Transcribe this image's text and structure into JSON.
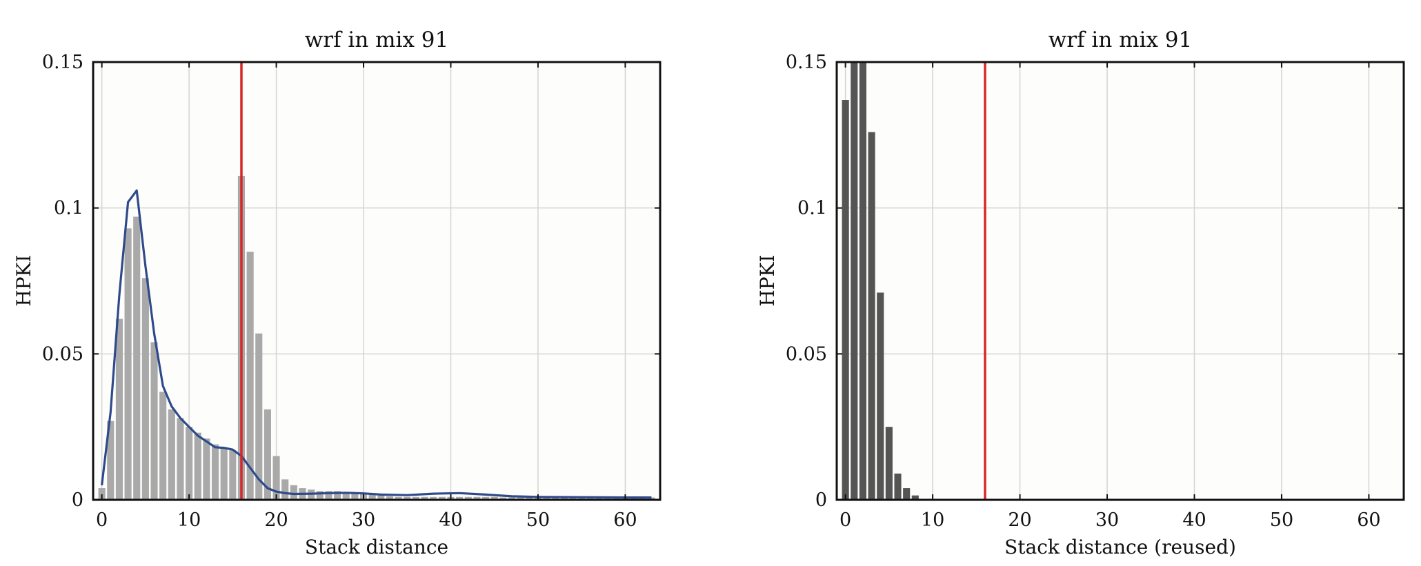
{
  "chart_data": [
    {
      "type": "bar",
      "title": "wrf in mix 91",
      "xlabel": "Stack distance",
      "ylabel": "HPKI",
      "xlim": [
        -1,
        64
      ],
      "ylim": [
        0,
        0.15
      ],
      "xticks": [
        "0",
        "10",
        "20",
        "30",
        "40",
        "50",
        "60"
      ],
      "yticks": [
        "0",
        "0.05",
        "0.1",
        "0.15"
      ],
      "grid": true,
      "bar_color": "#a9a9a9",
      "bars": {
        "x": [
          0,
          1,
          2,
          3,
          4,
          5,
          6,
          7,
          8,
          9,
          10,
          11,
          12,
          13,
          14,
          15,
          16,
          17,
          18,
          19,
          20,
          21,
          22,
          23,
          24,
          25,
          26,
          27,
          28,
          29,
          30,
          31,
          32,
          33,
          34,
          35,
          36,
          37,
          38,
          39,
          40,
          41,
          42,
          43,
          44,
          45,
          46,
          47,
          48,
          49,
          50,
          51,
          52,
          53,
          54,
          55,
          56,
          57,
          58,
          59,
          60,
          61,
          62,
          63
        ],
        "values": [
          0.004,
          0.027,
          0.062,
          0.093,
          0.097,
          0.076,
          0.054,
          0.037,
          0.031,
          0.028,
          0.025,
          0.023,
          0.021,
          0.019,
          0.018,
          0.017,
          0.111,
          0.085,
          0.057,
          0.031,
          0.015,
          0.007,
          0.005,
          0.004,
          0.0035,
          0.003,
          0.003,
          0.003,
          0.0025,
          0.0025,
          0.002,
          0.0018,
          0.0015,
          0.0012,
          0.001,
          0.001,
          0.001,
          0.001,
          0.001,
          0.001,
          0.001,
          0.001,
          0.001,
          0.001,
          0.001,
          0.001,
          0.0008,
          0.0008,
          0.0008,
          0.0008,
          0.0008,
          0.0008,
          0.0008,
          0.0008,
          0.0008,
          0.0008,
          0.0008,
          0.0008,
          0.0008,
          0.0008,
          0.0008,
          0.0008,
          0.0008,
          0.0008
        ]
      },
      "line": {
        "color": "#2e4a8b",
        "x": [
          0,
          1,
          2,
          3,
          4,
          5,
          6,
          7,
          8,
          9,
          10,
          11,
          12,
          13,
          14,
          15,
          16,
          17,
          18,
          19,
          20,
          21,
          22,
          24,
          26,
          28,
          30,
          32,
          35,
          38,
          41,
          44,
          47,
          50,
          55,
          60,
          63
        ],
        "y": [
          0.005,
          0.03,
          0.07,
          0.102,
          0.106,
          0.08,
          0.057,
          0.039,
          0.032,
          0.028,
          0.025,
          0.022,
          0.02,
          0.018,
          0.0178,
          0.0172,
          0.015,
          0.011,
          0.007,
          0.004,
          0.0028,
          0.0023,
          0.002,
          0.0021,
          0.0023,
          0.0024,
          0.0022,
          0.0018,
          0.0016,
          0.0021,
          0.0023,
          0.0018,
          0.0012,
          0.001,
          0.0009,
          0.0008,
          0.0008
        ]
      },
      "vline": {
        "x": 16,
        "color": "#d62728"
      }
    },
    {
      "type": "bar",
      "title": "wrf in mix 91",
      "xlabel": "Stack distance (reused)",
      "ylabel": "HPKI",
      "xlim": [
        -1,
        64
      ],
      "ylim": [
        0,
        0.15
      ],
      "xticks": [
        "0",
        "10",
        "20",
        "30",
        "40",
        "50",
        "60"
      ],
      "yticks": [
        "0",
        "0.05",
        "0.1",
        "0.15"
      ],
      "grid": true,
      "bar_color": "#555555",
      "bars": {
        "x": [
          0,
          1,
          2,
          3,
          4,
          5,
          6,
          7,
          8
        ],
        "values": [
          0.137,
          0.162,
          0.16,
          0.126,
          0.071,
          0.025,
          0.009,
          0.004,
          0.0015
        ]
      },
      "vline": {
        "x": 16,
        "color": "#d62728"
      }
    }
  ]
}
